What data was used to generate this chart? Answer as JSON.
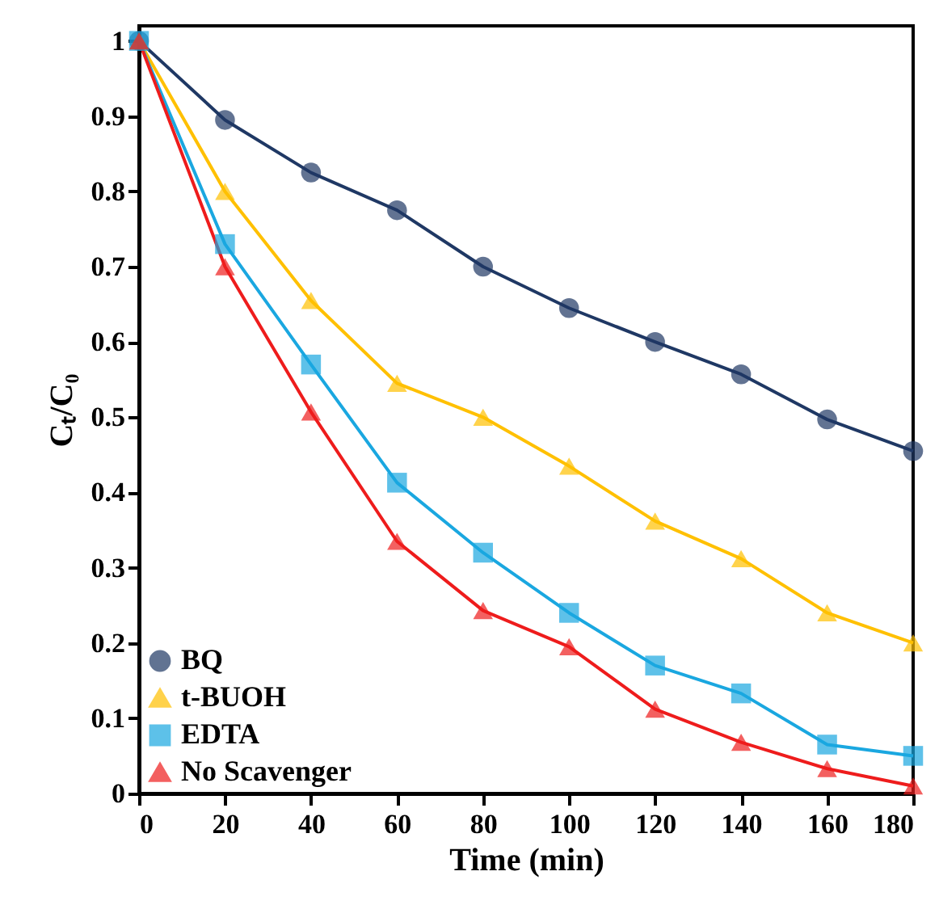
{
  "chart_data": {
    "type": "line",
    "xlabel": "Time (min)",
    "ylabel": "Cₜ/C₀",
    "x": [
      0,
      20,
      40,
      60,
      80,
      100,
      120,
      140,
      160,
      180
    ],
    "series": [
      {
        "name": "BQ",
        "color": "#1f3864",
        "marker": "circle",
        "values": [
          1,
          0.895,
          0.825,
          0.775,
          0.7,
          0.645,
          0.6,
          0.557,
          0.497,
          0.455
        ]
      },
      {
        "name": "t-BUOH",
        "color": "#ffc000",
        "marker": "triangle",
        "values": [
          1,
          0.8,
          0.655,
          0.545,
          0.5,
          0.435,
          0.362,
          0.312,
          0.24,
          0.2
        ]
      },
      {
        "name": "EDTA",
        "color": "#1aa7e0",
        "marker": "square",
        "values": [
          1,
          0.73,
          0.57,
          0.413,
          0.32,
          0.24,
          0.17,
          0.133,
          0.065,
          0.05
        ]
      },
      {
        "name": "No Scavenger",
        "color": "#ee1c1c",
        "marker": "triangle",
        "values": [
          1,
          0.7,
          0.507,
          0.335,
          0.243,
          0.195,
          0.112,
          0.068,
          0.033,
          0.01
        ]
      }
    ],
    "xlim": [
      0,
      180
    ],
    "xticks": [
      0,
      20,
      40,
      60,
      80,
      100,
      120,
      140,
      160,
      180
    ],
    "ylim": [
      0,
      1.02
    ],
    "yticks": [
      0,
      0.1,
      0.2,
      0.3,
      0.4,
      0.5,
      0.6,
      0.7,
      0.8,
      0.9,
      1
    ],
    "grid": false,
    "legend": "bottom left",
    "line_style": "solid"
  }
}
